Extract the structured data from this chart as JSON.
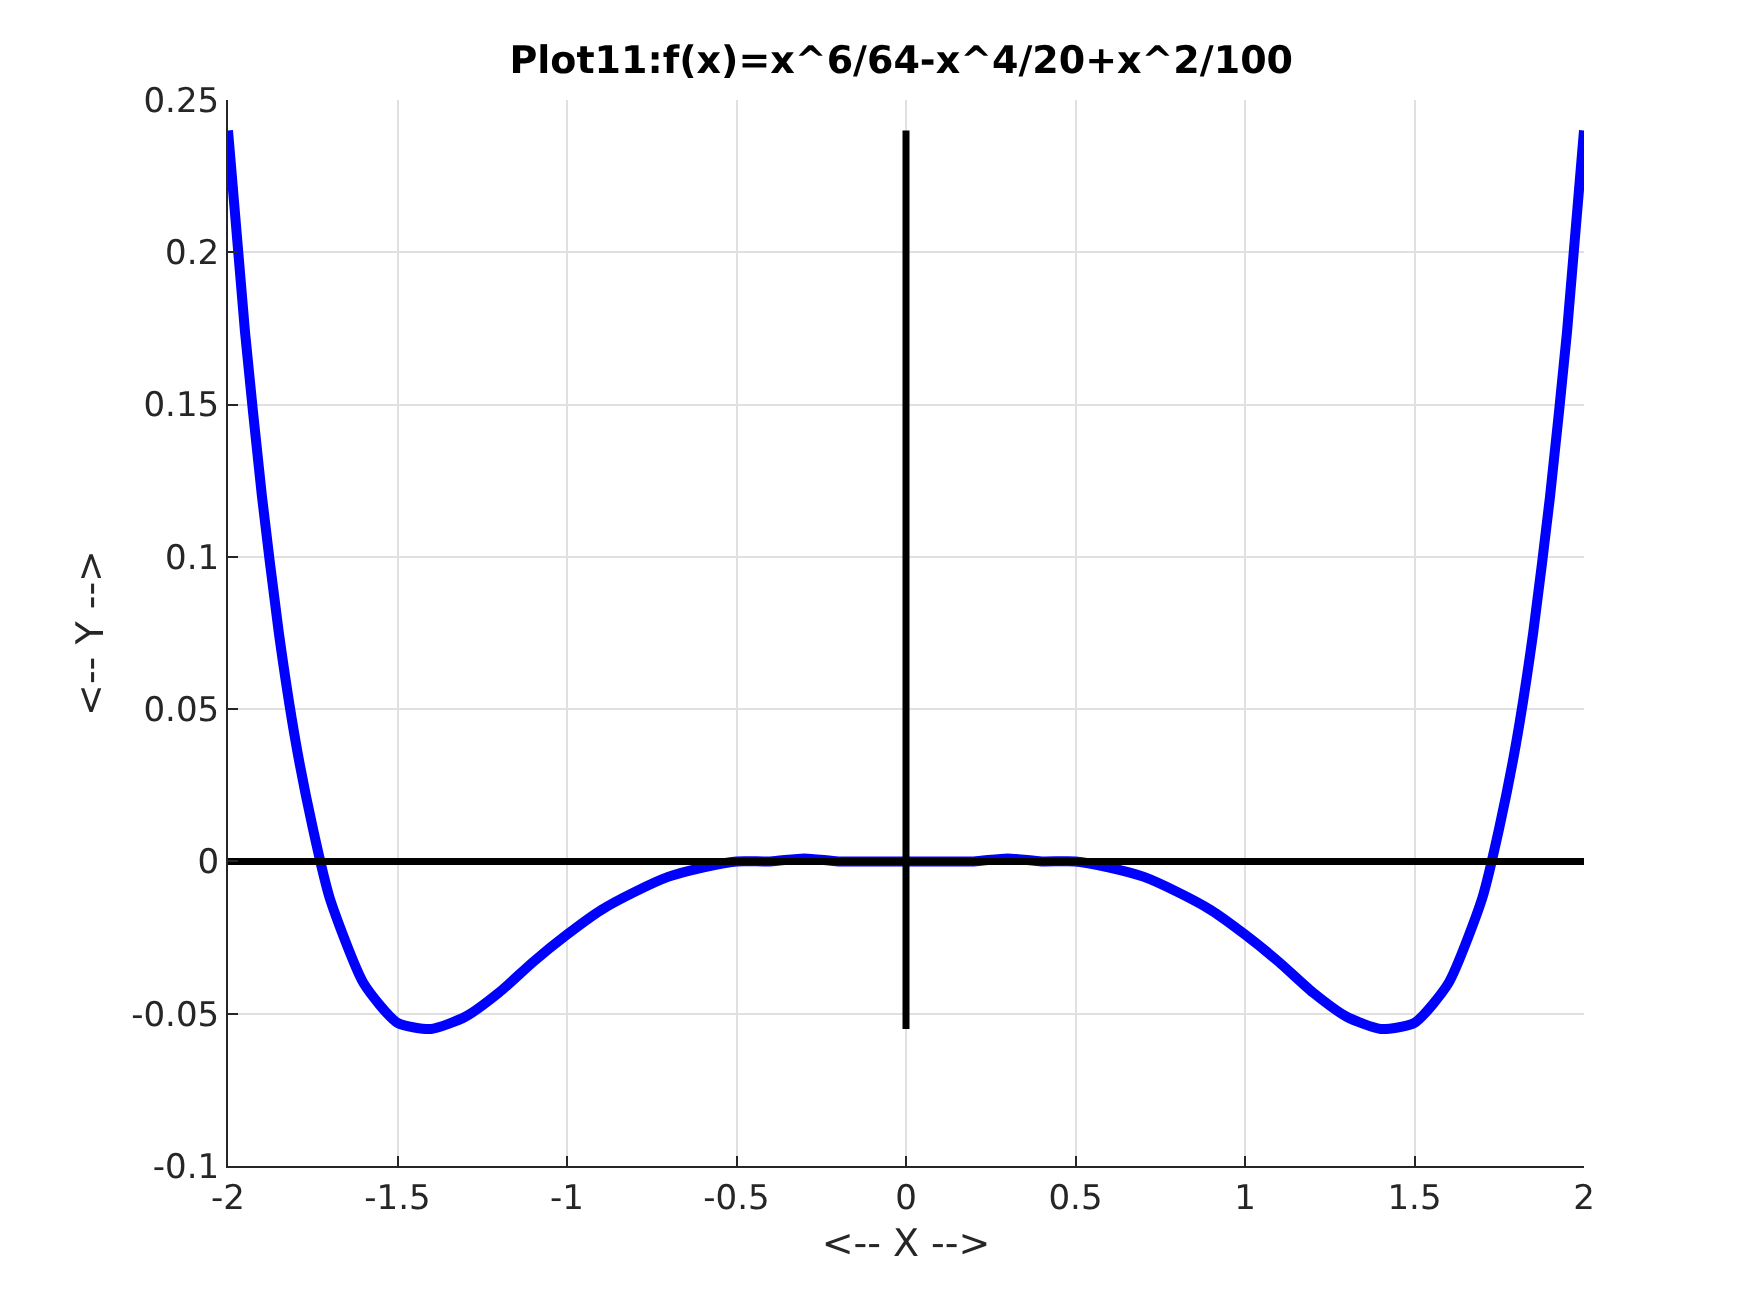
{
  "chart_data": {
    "type": "line",
    "title": "Plot11:f(x)=x^6/64-x^4/20+x^2/100",
    "xlabel": "<-- X -->",
    "ylabel": "<-- Y -->",
    "series": [
      {
        "color": "#0000ff",
        "x": [
          -2,
          -1.95,
          -1.9,
          -1.85,
          -1.8,
          -1.75,
          -1.7,
          -1.6,
          -1.5,
          -1.4,
          -1.3,
          -1.2,
          -1.1,
          -1,
          -0.9,
          -0.8,
          -0.7,
          -0.6,
          -0.5,
          -0.4,
          -0.3,
          -0.2,
          -0.1,
          0,
          0.1,
          0.2,
          0.3,
          0.4,
          0.5,
          0.6,
          0.7,
          0.8,
          0.9,
          1,
          1.1,
          1.2,
          1.3,
          1.4,
          1.5,
          1.6,
          1.7,
          1.75,
          1.8,
          1.85,
          1.9,
          1.95,
          2
        ],
        "values": [
          0.24,
          0.174,
          0.12,
          0.075,
          0.039,
          0.011,
          -0.012,
          -0.04,
          -0.053,
          -0.055,
          -0.051,
          -0.043,
          -0.033,
          -0.024,
          -0.016,
          -0.01,
          -0.005,
          -0.002,
          0,
          0,
          0.001,
          0,
          0,
          0,
          0,
          0,
          0.001,
          0,
          0,
          -0.002,
          -0.005,
          -0.01,
          -0.016,
          -0.024,
          -0.033,
          -0.043,
          -0.051,
          -0.055,
          -0.053,
          -0.04,
          -0.012,
          0.011,
          0.039,
          0.075,
          0.12,
          0.174,
          0.24
        ]
      },
      {
        "color": "#000000",
        "x": [
          -2,
          2
        ],
        "values": [
          0,
          0
        ]
      },
      {
        "color": "#000000",
        "x": [
          0,
          0
        ],
        "values": [
          -0.055,
          0.24
        ]
      }
    ],
    "xlim": [
      -2,
      2
    ],
    "xticks": [
      -2,
      -1.5,
      -1,
      -0.5,
      0,
      0.5,
      1,
      1.5,
      2
    ],
    "ylim": [
      -0.1,
      0.25
    ],
    "yticks": [
      -0.1,
      -0.05,
      0,
      0.05,
      0.1,
      0.15,
      0.2,
      0.25
    ],
    "grid": true,
    "marker": "none",
    "line_style": "solid"
  }
}
